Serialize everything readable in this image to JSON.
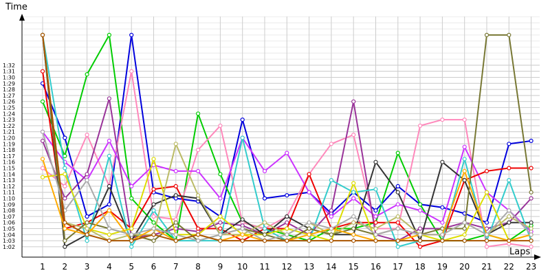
{
  "chart_data": {
    "type": "line",
    "xlabel": "Laps",
    "ylabel": "Time",
    "x": [
      1,
      2,
      3,
      4,
      5,
      6,
      7,
      8,
      9,
      10,
      11,
      12,
      13,
      14,
      15,
      16,
      17,
      18,
      19,
      20,
      21,
      22,
      23
    ],
    "y_tick_labels": [
      "1:02",
      "1:03",
      "1:04",
      "1:05",
      "1:06",
      "1:07",
      "1:08",
      "1:09",
      "1:10",
      "1:11",
      "1:12",
      "1:13",
      "1:14",
      "1:15",
      "1:16",
      "1:17",
      "1:18",
      "1:19",
      "1:20",
      "1:21",
      "1:22",
      "1:23",
      "1:24",
      "1:25",
      "1:26",
      "1:27",
      "1:28",
      "1:29",
      "1:30",
      "1:31",
      "1:32"
    ],
    "ylim": [
      "1:01",
      "1:36"
    ],
    "grid": true,
    "series": [
      {
        "color": "#0000dd",
        "values": [
          "1:29",
          "1:20",
          "1:07",
          "1:09",
          "1:37",
          "1:11",
          "1:10",
          "1:09.5",
          "1:07",
          "1:23",
          "1:10",
          "1:10.5",
          "1:11",
          "1:07.5",
          "1:11",
          "1:08",
          "1:12",
          "1:09",
          "1:08.5",
          "1:07.5",
          "1:06",
          "1:19",
          "1:19.5"
        ]
      },
      {
        "color": "#00cc00",
        "values": [
          "1:26",
          "1:17",
          "1:30.5",
          "1:37",
          "1:10",
          "1:06",
          "1:03",
          "1:24",
          "1:14",
          "1:06",
          "1:05",
          "1:04",
          "1:03",
          "1:05",
          "1:05",
          "1:06",
          "1:17.5",
          "1:09",
          "1:03",
          "1:03",
          "1:04",
          "1:03",
          "1:05.5"
        ]
      },
      {
        "color": "#ff88bb",
        "values": [
          "1:15",
          "1:12",
          "1:20.5",
          "1:12",
          "1:31",
          "1:07",
          "1:06.5",
          "1:18",
          "1:22",
          "1:06",
          "1:05",
          "1:07",
          "1:14",
          "1:19",
          "1:20.5",
          "1:05",
          "1:05",
          "1:22",
          "1:23",
          "1:23",
          "1:02",
          "1:02.5",
          "1:02"
        ]
      },
      {
        "color": "#cc33ff",
        "values": [
          "1:21",
          "1:16",
          "1:13",
          "1:19.5",
          "1:12",
          "1:15.5",
          "1:14.5",
          "1:14.5",
          "1:10",
          "1:20",
          "1:14.5",
          "1:17.5",
          "1:11",
          "1:07",
          "1:10",
          "1:07",
          "1:09",
          "1:08",
          "1:06",
          "1:18.5",
          "1:11",
          "1:08",
          "1:04.5"
        ]
      },
      {
        "color": "#993399",
        "values": [
          "1:19.5",
          "1:10",
          "1:14",
          "1:26.5",
          "1:03.5",
          "1:04",
          "1:05",
          "1:04.5",
          "1:06",
          "1:05.5",
          "1:04",
          "1:06",
          "1:04",
          "1:08",
          "1:26",
          "1:04",
          "1:03",
          "1:05",
          "1:05",
          "1:06",
          "1:05",
          "1:06",
          "1:10"
        ]
      },
      {
        "color": "#ee0000",
        "values": [
          "1:31",
          "1:05",
          "1:06",
          "1:08",
          "1:05",
          "1:11.5",
          "1:12",
          "1:05",
          "1:05",
          "1:03",
          "1:05",
          "1:05",
          "1:14",
          "1:05",
          "1:06",
          "1:06",
          "1:06",
          "1:02",
          "1:03",
          "1:13",
          "1:14.5",
          "1:15",
          "1:15"
        ]
      },
      {
        "color": "#333333",
        "values": [
          "1:37",
          "1:02",
          "1:04",
          "1:12",
          "1:03",
          "1:09",
          "1:10.5",
          "1:10",
          "1:04",
          "1:06.5",
          "1:04",
          "1:07",
          "1:05",
          "1:04",
          "1:04",
          "1:16",
          "1:11",
          "1:03",
          "1:16",
          "1:13",
          "1:04",
          "1:06",
          "1:06"
        ]
      },
      {
        "color": "#33cccc",
        "values": [
          "1:37",
          "1:15",
          "1:03",
          "1:17",
          "1:02",
          "1:08",
          "1:03",
          "1:03",
          "1:03",
          "1:20",
          "1:05",
          "1:03",
          "1:03",
          "1:13",
          "1:11",
          "1:11.5",
          "1:02",
          "1:03",
          "1:03",
          "1:16.5",
          "1:03",
          "1:13",
          "1:03"
        ]
      },
      {
        "color": "#dddd00",
        "values": [
          "1:13.5",
          "1:14",
          "1:05",
          "1:04",
          "1:05",
          "1:16.5",
          "1:04",
          "1:04",
          "1:07",
          "1:04",
          "1:04",
          "1:05",
          "1:04",
          "1:03",
          "1:12.5",
          "1:03",
          "1:03",
          "1:04",
          "1:03",
          "1:04",
          "1:11",
          "1:03",
          "1:04"
        ]
      },
      {
        "color": "#bbbb66",
        "values": [
          "1:37",
          "1:06",
          "1:05",
          "1:03",
          "1:04",
          "1:04",
          "1:19",
          "1:10.5",
          "1:04",
          "1:04",
          "1:06",
          "1:04",
          "1:06",
          "1:04",
          "1:06",
          "1:05",
          "1:07",
          "1:04",
          "1:04",
          "1:06",
          "1:04",
          "1:07",
          "1:05"
        ]
      },
      {
        "color": "#777733",
        "values": [
          "1:37",
          "1:03",
          "1:06",
          "1:05",
          "1:04",
          "1:03",
          "1:06",
          "1:03",
          "1:04",
          "1:05",
          "1:04",
          "1:03",
          "1:05",
          "1:04",
          "1:05",
          "1:04",
          "1:05",
          "1:04",
          "1:05",
          "1:05",
          "1:37",
          "1:37",
          "1:11"
        ]
      },
      {
        "color": "#ffaa00",
        "values": [
          "1:16.5",
          "1:05",
          "1:04",
          "1:08",
          "1:03",
          "1:05",
          "1:03",
          "1:04",
          "1:03",
          "1:04",
          "1:03",
          "1:03",
          "1:04",
          "1:05",
          "1:04",
          "1:03",
          "1:03",
          "1:04",
          "1:04",
          "1:14.5",
          "1:04",
          "1:03",
          "1:04"
        ]
      },
      {
        "color": "#aaaaaa",
        "values": [
          "1:21",
          "1:08",
          "1:13",
          "1:05",
          "1:04",
          "1:05",
          "1:04",
          "1:03",
          "1:04",
          "1:05",
          "1:03",
          "1:04",
          "1:06",
          "1:05",
          "1:07",
          "1:04",
          "1:05",
          "1:04",
          "1:04",
          "1:06",
          "1:04",
          "1:08",
          "1:04"
        ]
      },
      {
        "color": "#aa5500",
        "values": [
          "1:37",
          "1:06",
          "1:04",
          "1:03",
          "1:03",
          "1:04",
          "1:03",
          "1:04",
          "1:03",
          "1:03",
          "1:03",
          "1:03",
          "1:03",
          "1:03",
          "1:03",
          "1:03",
          "1:03",
          "1:03",
          "1:03",
          "1:03",
          "1:03",
          "1:03",
          "1:03"
        ]
      }
    ]
  }
}
